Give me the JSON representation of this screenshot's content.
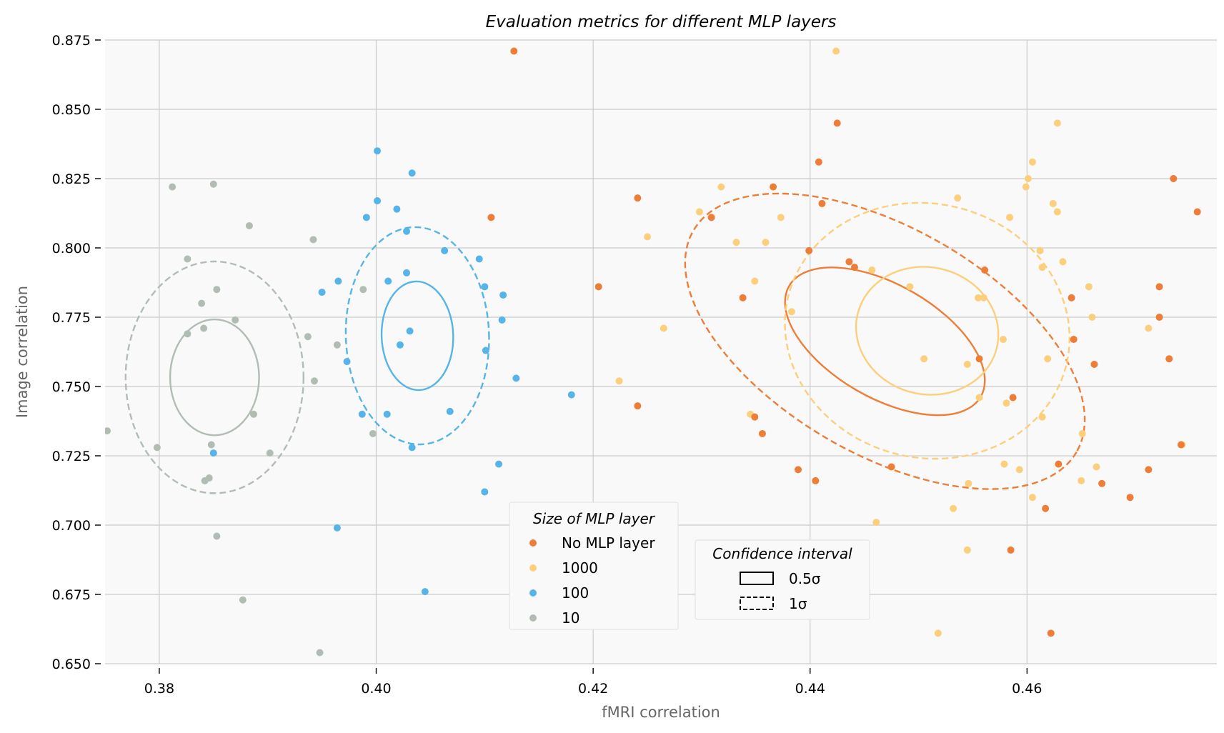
{
  "chart_data": {
    "type": "scatter",
    "title": "Evaluation metrics for different MLP layers",
    "xlabel": "fMRI correlation",
    "ylabel": "Image correlation",
    "xlim": [
      0.375,
      0.4775
    ],
    "ylim": [
      0.65,
      0.875
    ],
    "xticks": [
      0.38,
      0.4,
      0.42,
      0.44,
      0.46
    ],
    "xtick_labels": [
      "0.38",
      "0.40",
      "0.42",
      "0.44",
      "0.46"
    ],
    "yticks": [
      0.65,
      0.675,
      0.7,
      0.725,
      0.75,
      0.775,
      0.8,
      0.825,
      0.85,
      0.875
    ],
    "ytick_labels": [
      "0.650",
      "0.675",
      "0.700",
      "0.725",
      "0.750",
      "0.775",
      "0.800",
      "0.825",
      "0.850",
      "0.875"
    ],
    "grid": true,
    "legend_placement": "bottom-center",
    "series": [
      {
        "name": "No MLP layer",
        "color": "#EE7D37",
        "points": [
          [
            0.4127,
            0.871
          ],
          [
            0.4425,
            0.845
          ],
          [
            0.4408,
            0.831
          ],
          [
            0.4106,
            0.811
          ],
          [
            0.4366,
            0.822
          ],
          [
            0.4735,
            0.825
          ],
          [
            0.4241,
            0.818
          ],
          [
            0.4411,
            0.816
          ],
          [
            0.4309,
            0.811
          ],
          [
            0.4757,
            0.813
          ],
          [
            0.4399,
            0.799
          ],
          [
            0.4436,
            0.795
          ],
          [
            0.4441,
            0.793
          ],
          [
            0.4561,
            0.792
          ],
          [
            0.4205,
            0.786
          ],
          [
            0.4722,
            0.786
          ],
          [
            0.4338,
            0.782
          ],
          [
            0.4641,
            0.782
          ],
          [
            0.4722,
            0.775
          ],
          [
            0.4643,
            0.767
          ],
          [
            0.4556,
            0.76
          ],
          [
            0.4731,
            0.76
          ],
          [
            0.4662,
            0.758
          ],
          [
            0.4587,
            0.746
          ],
          [
            0.4241,
            0.743
          ],
          [
            0.4349,
            0.739
          ],
          [
            0.4356,
            0.733
          ],
          [
            0.4742,
            0.729
          ],
          [
            0.4629,
            0.722
          ],
          [
            0.4475,
            0.721
          ],
          [
            0.4389,
            0.72
          ],
          [
            0.4712,
            0.72
          ],
          [
            0.4405,
            0.716
          ],
          [
            0.4669,
            0.715
          ],
          [
            0.4695,
            0.71
          ],
          [
            0.4617,
            0.706
          ],
          [
            0.4585,
            0.691
          ],
          [
            0.4622,
            0.661
          ]
        ]
      },
      {
        "name": "1000",
        "color": "#FCCF7C",
        "points": [
          [
            0.4424,
            0.871
          ],
          [
            0.4628,
            0.845
          ],
          [
            0.4605,
            0.831
          ],
          [
            0.4318,
            0.822
          ],
          [
            0.4601,
            0.825
          ],
          [
            0.4599,
            0.822
          ],
          [
            0.4536,
            0.818
          ],
          [
            0.4624,
            0.816
          ],
          [
            0.4298,
            0.813
          ],
          [
            0.4628,
            0.813
          ],
          [
            0.4373,
            0.811
          ],
          [
            0.4584,
            0.811
          ],
          [
            0.425,
            0.804
          ],
          [
            0.4332,
            0.802
          ],
          [
            0.4359,
            0.802
          ],
          [
            0.4612,
            0.799
          ],
          [
            0.4633,
            0.795
          ],
          [
            0.4614,
            0.793
          ],
          [
            0.4457,
            0.792
          ],
          [
            0.4349,
            0.788
          ],
          [
            0.4492,
            0.786
          ],
          [
            0.4657,
            0.786
          ],
          [
            0.4555,
            0.782
          ],
          [
            0.456,
            0.782
          ],
          [
            0.4383,
            0.777
          ],
          [
            0.466,
            0.775
          ],
          [
            0.4265,
            0.771
          ],
          [
            0.4712,
            0.771
          ],
          [
            0.4578,
            0.767
          ],
          [
            0.4505,
            0.76
          ],
          [
            0.4619,
            0.76
          ],
          [
            0.4545,
            0.758
          ],
          [
            0.4224,
            0.752
          ],
          [
            0.4556,
            0.746
          ],
          [
            0.4581,
            0.744
          ],
          [
            0.4345,
            0.74
          ],
          [
            0.4614,
            0.739
          ],
          [
            0.4651,
            0.733
          ],
          [
            0.4743,
            0.729
          ],
          [
            0.4579,
            0.722
          ],
          [
            0.4593,
            0.72
          ],
          [
            0.4664,
            0.721
          ],
          [
            0.4546,
            0.715
          ],
          [
            0.465,
            0.716
          ],
          [
            0.4605,
            0.71
          ],
          [
            0.4532,
            0.706
          ],
          [
            0.4461,
            0.701
          ],
          [
            0.4545,
            0.691
          ],
          [
            0.4518,
            0.661
          ]
        ]
      },
      {
        "name": "100",
        "color": "#56B4E9",
        "points": [
          [
            0.4001,
            0.835
          ],
          [
            0.4033,
            0.827
          ],
          [
            0.4001,
            0.817
          ],
          [
            0.4019,
            0.814
          ],
          [
            0.3991,
            0.811
          ],
          [
            0.4028,
            0.806
          ],
          [
            0.4063,
            0.799
          ],
          [
            0.4095,
            0.796
          ],
          [
            0.4028,
            0.791
          ],
          [
            0.4011,
            0.788
          ],
          [
            0.3965,
            0.788
          ],
          [
            0.41,
            0.786
          ],
          [
            0.395,
            0.784
          ],
          [
            0.4117,
            0.783
          ],
          [
            0.4116,
            0.774
          ],
          [
            0.4031,
            0.77
          ],
          [
            0.4022,
            0.765
          ],
          [
            0.4101,
            0.763
          ],
          [
            0.3973,
            0.759
          ],
          [
            0.4129,
            0.753
          ],
          [
            0.418,
            0.747
          ],
          [
            0.4068,
            0.741
          ],
          [
            0.3987,
            0.74
          ],
          [
            0.401,
            0.74
          ],
          [
            0.4033,
            0.728
          ],
          [
            0.385,
            0.726
          ],
          [
            0.4113,
            0.722
          ],
          [
            0.41,
            0.712
          ],
          [
            0.3964,
            0.699
          ],
          [
            0.4045,
            0.676
          ]
        ]
      },
      {
        "name": "10",
        "color": "#B1BDB3",
        "points": [
          [
            0.3812,
            0.822
          ],
          [
            0.385,
            0.823
          ],
          [
            0.3883,
            0.808
          ],
          [
            0.3942,
            0.803
          ],
          [
            0.3826,
            0.796
          ],
          [
            0.3853,
            0.785
          ],
          [
            0.3988,
            0.785
          ],
          [
            0.3839,
            0.78
          ],
          [
            0.387,
            0.774
          ],
          [
            0.3841,
            0.771
          ],
          [
            0.3826,
            0.769
          ],
          [
            0.3937,
            0.768
          ],
          [
            0.3964,
            0.765
          ],
          [
            0.3943,
            0.752
          ],
          [
            0.3887,
            0.74
          ],
          [
            0.3997,
            0.733
          ],
          [
            0.3752,
            0.734
          ],
          [
            0.3798,
            0.728
          ],
          [
            0.3848,
            0.729
          ],
          [
            0.3902,
            0.726
          ],
          [
            0.3846,
            0.717
          ],
          [
            0.3842,
            0.716
          ],
          [
            0.3853,
            0.696
          ],
          [
            0.3877,
            0.673
          ],
          [
            0.3948,
            0.654
          ]
        ]
      }
    ],
    "confidence_ellipses": [
      {
        "series": "No MLP layer",
        "sigma": "0.5",
        "center": [
          0.4469,
          0.7663
        ],
        "semi_major": 0.0102,
        "semi_minor": 0.0204,
        "angle_deg": -30
      },
      {
        "series": "No MLP layer",
        "sigma": "1",
        "center": [
          0.4469,
          0.7663
        ],
        "semi_major": 0.0204,
        "semi_minor": 0.0408,
        "angle_deg": -30
      },
      {
        "series": "1000",
        "sigma": "0.5",
        "center": [
          0.4508,
          0.7701
        ],
        "semi_major": 0.0066,
        "semi_minor": 0.0229,
        "angle_deg": -14
      },
      {
        "series": "1000",
        "sigma": "1",
        "center": [
          0.4508,
          0.7701
        ],
        "semi_major": 0.0132,
        "semi_minor": 0.0458,
        "angle_deg": -14
      },
      {
        "series": "100",
        "sigma": "0.5",
        "center": [
          0.4038,
          0.7683
        ],
        "semi_major": 0.0033,
        "semi_minor": 0.0196,
        "angle_deg": 2
      },
      {
        "series": "100",
        "sigma": "1",
        "center": [
          0.4038,
          0.7683
        ],
        "semi_major": 0.0066,
        "semi_minor": 0.0392,
        "angle_deg": 2
      },
      {
        "series": "10",
        "sigma": "0.5",
        "center": [
          0.3851,
          0.7533
        ],
        "semi_major": 0.0041,
        "semi_minor": 0.0209,
        "angle_deg": 0
      },
      {
        "series": "10",
        "sigma": "1",
        "center": [
          0.3851,
          0.7533
        ],
        "semi_major": 0.0082,
        "semi_minor": 0.0418,
        "angle_deg": 0
      }
    ],
    "legend_series": {
      "title": "Size of MLP layer",
      "entries": [
        {
          "label": "No MLP layer",
          "color": "#EE7D37"
        },
        {
          "label": "1000",
          "color": "#FCCF7C"
        },
        {
          "label": "100",
          "color": "#56B4E9"
        },
        {
          "label": "10",
          "color": "#B1BDB3"
        }
      ]
    },
    "legend_ci": {
      "title": "Confidence interval",
      "entries": [
        {
          "label": "0.5σ",
          "style": "solid"
        },
        {
          "label": "1σ",
          "style": "dashed"
        }
      ]
    }
  }
}
